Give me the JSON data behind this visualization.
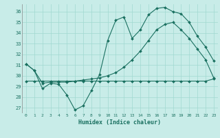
{
  "xlabel": "Humidex (Indice chaleur)",
  "background_color": "#c8ece8",
  "grid_color": "#a0d8d0",
  "line_color": "#1a7060",
  "xlim": [
    -0.5,
    23.5
  ],
  "ylim": [
    26.5,
    36.7
  ],
  "yticks": [
    27,
    28,
    29,
    30,
    31,
    32,
    33,
    34,
    35,
    36
  ],
  "xticks": [
    0,
    1,
    2,
    3,
    4,
    5,
    6,
    7,
    8,
    9,
    10,
    11,
    12,
    13,
    14,
    15,
    16,
    17,
    18,
    19,
    20,
    21,
    22,
    23
  ],
  "line1_x": [
    0,
    1,
    2,
    3,
    4,
    5,
    6,
    7,
    8,
    9,
    10,
    11,
    12,
    13,
    14,
    15,
    16,
    17,
    18,
    19,
    20,
    21,
    22,
    23
  ],
  "line1_y": [
    31.1,
    30.5,
    28.8,
    29.3,
    29.2,
    28.2,
    26.8,
    27.2,
    28.6,
    30.1,
    33.3,
    35.2,
    35.5,
    33.5,
    34.3,
    35.7,
    36.3,
    36.4,
    36.0,
    35.8,
    35.0,
    33.7,
    32.7,
    31.4
  ],
  "line2_x": [
    0,
    1,
    2,
    3,
    4,
    5,
    6,
    7,
    8,
    9,
    10,
    11,
    12,
    13,
    14,
    15,
    16,
    17,
    18,
    19,
    20,
    21,
    22,
    23
  ],
  "line2_y": [
    31.1,
    30.5,
    29.3,
    29.4,
    29.4,
    29.4,
    29.5,
    29.6,
    29.7,
    29.8,
    30.0,
    30.3,
    30.8,
    31.5,
    32.3,
    33.3,
    34.3,
    34.8,
    35.0,
    34.3,
    33.5,
    32.5,
    31.5,
    29.8
  ],
  "line3_x": [
    0,
    1,
    2,
    3,
    4,
    5,
    6,
    7,
    8,
    9,
    10,
    11,
    12,
    13,
    14,
    15,
    16,
    17,
    18,
    19,
    20,
    21,
    22,
    23
  ],
  "line3_y": [
    29.5,
    29.5,
    29.5,
    29.5,
    29.5,
    29.5,
    29.5,
    29.5,
    29.5,
    29.5,
    29.5,
    29.5,
    29.5,
    29.5,
    29.5,
    29.5,
    29.5,
    29.5,
    29.5,
    29.5,
    29.5,
    29.5,
    29.5,
    29.7
  ]
}
